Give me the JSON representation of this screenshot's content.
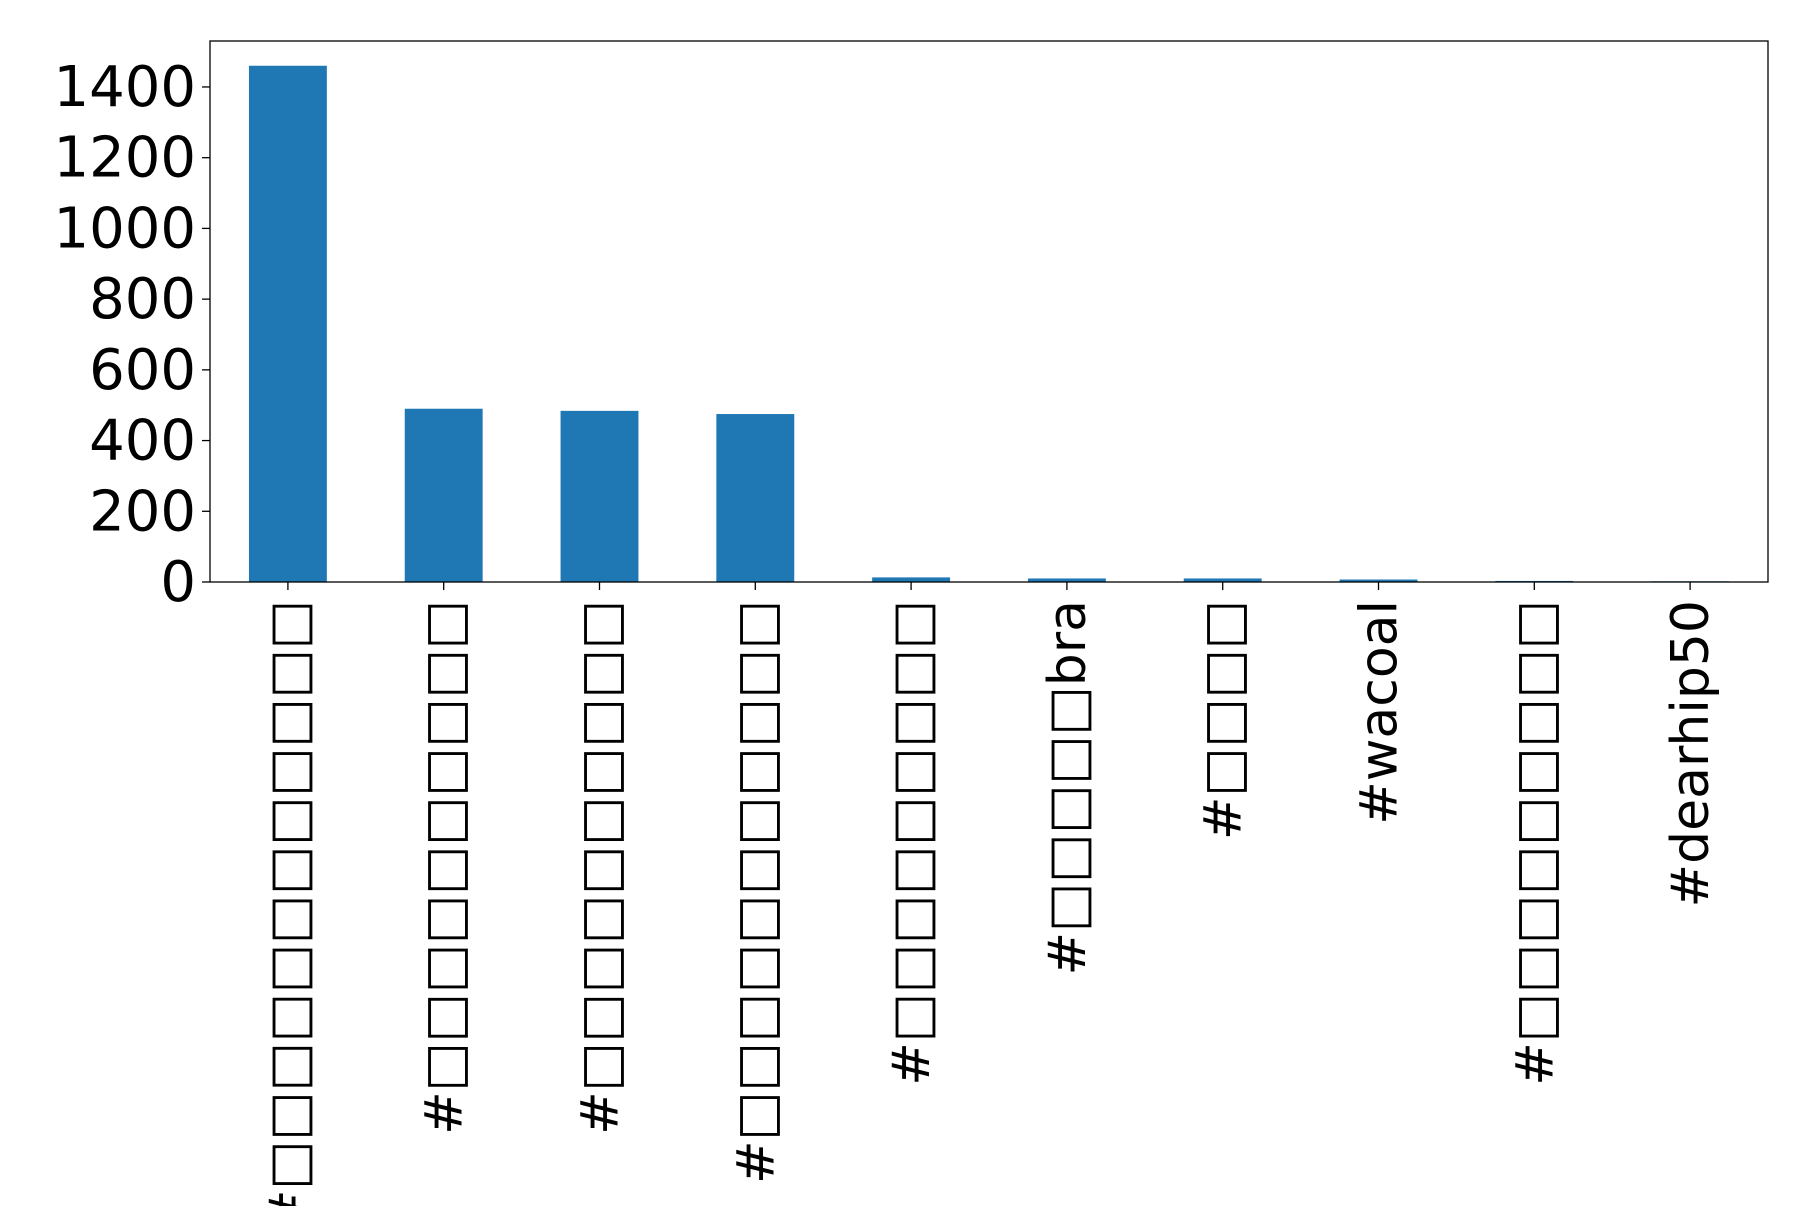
{
  "chart_data": {
    "type": "bar",
    "categories": [
      "#□□□□□□□□□□□□",
      "#□□□□□□□□□□",
      "#□□□□□□□□□□",
      "#□□□□□□□□□□□",
      "#□□□□□□□□□",
      "#□□□□□bra",
      "#□□□□",
      "#wacoal",
      "#□□□□□□□□□",
      "#dearhip50"
    ],
    "values": [
      1460,
      490,
      484,
      475,
      13,
      10,
      10,
      7,
      3,
      2
    ],
    "ylim": [
      0,
      1530
    ],
    "yticks": [
      "0",
      "200",
      "400",
      "600",
      "800",
      "1000",
      "1200",
      "1400"
    ],
    "title": "",
    "xlabel": "",
    "ylabel": "",
    "bar_color": "#1f77b4",
    "grid": false,
    "legend": "none"
  }
}
